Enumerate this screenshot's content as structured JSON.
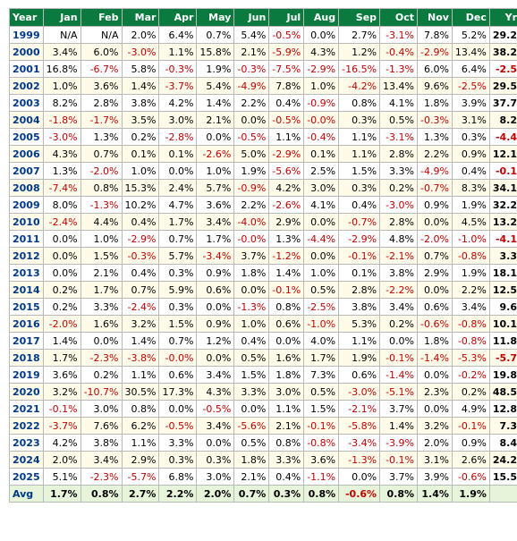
{
  "headers": [
    "Year",
    "Jan",
    "Feb",
    "Mar",
    "Apr",
    "May",
    "Jun",
    "Jul",
    "Aug",
    "Sep",
    "Oct",
    "Nov",
    "Dec",
    "Yr%"
  ],
  "rows": [
    {
      "year": "1999",
      "cells": [
        "N/A",
        "N/A",
        "2.0%",
        "6.4%",
        "0.7%",
        "5.4%",
        "-0.5%",
        "0.0%",
        "2.7%",
        "-3.1%",
        "7.8%",
        "5.2%",
        "29.2%"
      ]
    },
    {
      "year": "2000",
      "cells": [
        "3.4%",
        "6.0%",
        "-3.0%",
        "1.1%",
        "15.8%",
        "2.1%",
        "-5.9%",
        "4.3%",
        "1.2%",
        "-0.4%",
        "-2.9%",
        "13.4%",
        "38.2%"
      ]
    },
    {
      "year": "2001",
      "cells": [
        "16.8%",
        "-6.7%",
        "5.8%",
        "-0.3%",
        "1.9%",
        "-0.3%",
        "-7.5%",
        "-2.9%",
        "-16.5%",
        "-1.3%",
        "6.0%",
        "6.4%",
        "-2.5%"
      ]
    },
    {
      "year": "2002",
      "cells": [
        "1.0%",
        "3.6%",
        "1.4%",
        "-3.7%",
        "5.4%",
        "-4.9%",
        "7.8%",
        "1.0%",
        "-4.2%",
        "13.4%",
        "9.6%",
        "-2.5%",
        "29.5%"
      ]
    },
    {
      "year": "2003",
      "cells": [
        "8.2%",
        "2.8%",
        "3.8%",
        "4.2%",
        "1.4%",
        "2.2%",
        "0.4%",
        "-0.9%",
        "0.8%",
        "4.1%",
        "1.8%",
        "3.9%",
        "37.7%"
      ]
    },
    {
      "year": "2004",
      "cells": [
        "-1.8%",
        "-1.7%",
        "3.5%",
        "3.0%",
        "2.1%",
        "0.0%",
        "-0.5%",
        "-0.0%",
        "0.3%",
        "0.5%",
        "-0.3%",
        "3.1%",
        "8.2%"
      ]
    },
    {
      "year": "2005",
      "cells": [
        "-3.0%",
        "1.3%",
        "0.2%",
        "-2.8%",
        "0.0%",
        "-0.5%",
        "1.1%",
        "-0.4%",
        "1.1%",
        "-3.1%",
        "1.3%",
        "0.3%",
        "-4.4%"
      ]
    },
    {
      "year": "2006",
      "cells": [
        "4.3%",
        "0.7%",
        "0.1%",
        "0.1%",
        "-2.6%",
        "5.0%",
        "-2.9%",
        "0.1%",
        "1.1%",
        "2.8%",
        "2.2%",
        "0.9%",
        "12.1%"
      ]
    },
    {
      "year": "2007",
      "cells": [
        "1.3%",
        "-2.0%",
        "1.0%",
        "0.0%",
        "1.0%",
        "1.9%",
        "-5.6%",
        "2.5%",
        "1.5%",
        "3.3%",
        "-4.9%",
        "0.4%",
        "-0.1%"
      ]
    },
    {
      "year": "2008",
      "cells": [
        "-7.4%",
        "0.8%",
        "15.3%",
        "2.4%",
        "5.7%",
        "-0.9%",
        "4.2%",
        "3.0%",
        "0.3%",
        "0.2%",
        "-0.7%",
        "8.3%",
        "34.1%"
      ]
    },
    {
      "year": "2009",
      "cells": [
        "8.0%",
        "-1.3%",
        "10.2%",
        "4.7%",
        "3.6%",
        "2.2%",
        "-2.6%",
        "4.1%",
        "0.4%",
        "-3.0%",
        "0.9%",
        "1.9%",
        "32.2%"
      ]
    },
    {
      "year": "2010",
      "cells": [
        "-2.4%",
        "4.4%",
        "0.4%",
        "1.7%",
        "3.4%",
        "-4.0%",
        "2.9%",
        "0.0%",
        "-0.7%",
        "2.8%",
        "0.0%",
        "4.5%",
        "13.2%"
      ]
    },
    {
      "year": "2011",
      "cells": [
        "0.0%",
        "1.0%",
        "-2.9%",
        "0.7%",
        "1.7%",
        "-0.0%",
        "1.3%",
        "-4.4%",
        "-2.9%",
        "4.8%",
        "-2.0%",
        "-1.0%",
        "-4.1%"
      ]
    },
    {
      "year": "2012",
      "cells": [
        "0.0%",
        "1.5%",
        "-0.3%",
        "5.7%",
        "-3.4%",
        "3.7%",
        "-1.2%",
        "0.0%",
        "-0.1%",
        "-2.1%",
        "0.7%",
        "-0.8%",
        "3.3%"
      ]
    },
    {
      "year": "2013",
      "cells": [
        "0.0%",
        "2.1%",
        "0.4%",
        "0.3%",
        "0.9%",
        "1.8%",
        "1.4%",
        "1.0%",
        "0.1%",
        "3.8%",
        "2.9%",
        "1.9%",
        "18.1%"
      ]
    },
    {
      "year": "2014",
      "cells": [
        "0.2%",
        "1.7%",
        "0.7%",
        "5.9%",
        "0.6%",
        "0.0%",
        "-0.1%",
        "0.5%",
        "2.8%",
        "-2.2%",
        "0.0%",
        "2.2%",
        "12.5%"
      ]
    },
    {
      "year": "2015",
      "cells": [
        "0.2%",
        "3.3%",
        "-2.4%",
        "0.3%",
        "0.0%",
        "-1.3%",
        "0.8%",
        "-2.5%",
        "3.8%",
        "3.4%",
        "0.6%",
        "3.4%",
        "9.6%"
      ]
    },
    {
      "year": "2016",
      "cells": [
        "-2.0%",
        "1.6%",
        "3.2%",
        "1.5%",
        "0.9%",
        "1.0%",
        "0.6%",
        "-1.0%",
        "5.3%",
        "0.2%",
        "-0.6%",
        "-0.8%",
        "10.1%"
      ]
    },
    {
      "year": "2017",
      "cells": [
        "1.4%",
        "0.0%",
        "1.4%",
        "0.7%",
        "1.2%",
        "0.4%",
        "0.0%",
        "4.0%",
        "1.1%",
        "0.0%",
        "1.8%",
        "-0.8%",
        "11.8%"
      ]
    },
    {
      "year": "2018",
      "cells": [
        "1.7%",
        "-2.3%",
        "-3.8%",
        "-0.0%",
        "0.0%",
        "0.5%",
        "1.6%",
        "1.7%",
        "1.9%",
        "-0.1%",
        "-1.4%",
        "-5.3%",
        "-5.7%"
      ]
    },
    {
      "year": "2019",
      "cells": [
        "3.6%",
        "0.2%",
        "1.1%",
        "0.6%",
        "3.4%",
        "1.5%",
        "1.8%",
        "7.3%",
        "0.6%",
        "-1.4%",
        "0.0%",
        "-0.2%",
        "19.8%"
      ]
    },
    {
      "year": "2020",
      "cells": [
        "3.2%",
        "-10.7%",
        "30.5%",
        "17.3%",
        "4.3%",
        "3.3%",
        "3.0%",
        "0.5%",
        "-3.0%",
        "-5.1%",
        "2.3%",
        "0.2%",
        "48.5%"
      ]
    },
    {
      "year": "2021",
      "cells": [
        "-0.1%",
        "3.0%",
        "0.8%",
        "0.0%",
        "-0.5%",
        "0.0%",
        "1.1%",
        "1.5%",
        "-2.1%",
        "3.7%",
        "0.0%",
        "4.9%",
        "12.8%"
      ]
    },
    {
      "year": "2022",
      "cells": [
        "-3.7%",
        "7.6%",
        "6.2%",
        "-0.5%",
        "3.4%",
        "-5.6%",
        "2.1%",
        "-0.1%",
        "-5.8%",
        "1.4%",
        "3.2%",
        "-0.1%",
        "7.3%"
      ]
    },
    {
      "year": "2023",
      "cells": [
        "4.2%",
        "3.8%",
        "1.1%",
        "3.3%",
        "0.0%",
        "0.5%",
        "0.8%",
        "-0.8%",
        "-3.4%",
        "-3.9%",
        "2.0%",
        "0.9%",
        "8.4%"
      ]
    },
    {
      "year": "2024",
      "cells": [
        "2.0%",
        "3.4%",
        "2.9%",
        "0.3%",
        "0.3%",
        "1.8%",
        "3.3%",
        "3.6%",
        "-1.3%",
        "-0.1%",
        "3.1%",
        "2.6%",
        "24.2%"
      ]
    },
    {
      "year": "2025",
      "cells": [
        "5.1%",
        "-2.3%",
        "-5.7%",
        "6.8%",
        "3.0%",
        "2.1%",
        "0.4%",
        "-1.1%",
        "0.0%",
        "3.7%",
        "3.9%",
        "-0.6%",
        "15.5%"
      ]
    }
  ],
  "avg": {
    "label": "Avg",
    "cells": [
      "1.7%",
      "0.8%",
      "2.7%",
      "2.2%",
      "2.0%",
      "0.7%",
      "0.3%",
      "0.8%",
      "-0.6%",
      "0.8%",
      "1.4%",
      "1.9%",
      ""
    ]
  },
  "colors": {
    "header_bg": "#0b7a3e",
    "header_text": "#ffffff",
    "negative": "#c00000",
    "year_text": "#003a86",
    "row_alt": "#fffbe8",
    "avg_bg": "#e6f4d9"
  }
}
